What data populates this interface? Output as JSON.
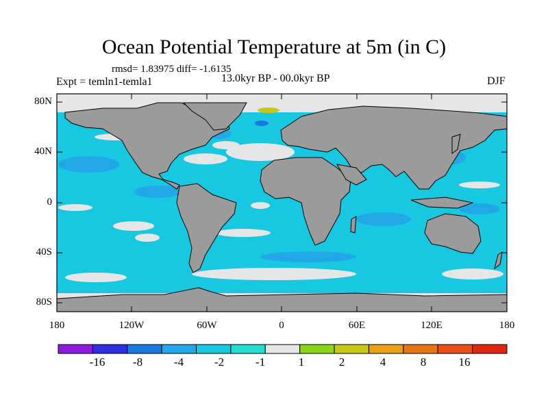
{
  "title": "Ocean Potential Temperature at 5m (in C)",
  "stats": "rmsd= 1.83975 diff= -1.6135",
  "experiment": "Expt = temln1-temla1",
  "period": "13.0kyr BP - 00.0kyr BP",
  "season": "DJF",
  "axes": {
    "y_ticks": [
      "80N",
      "40N",
      "0",
      "40S",
      "80S"
    ],
    "x_ticks": [
      "180",
      "120W",
      "60W",
      "0",
      "60E",
      "120E",
      "180"
    ]
  },
  "colorbar": {
    "colors": [
      "#8c1cdc",
      "#2f2ee0",
      "#1c78dc",
      "#22a8e6",
      "#18c8e0",
      "#24dcd0",
      "#e6e6e6",
      "#8ad618",
      "#c8c814",
      "#e6a014",
      "#e67614",
      "#e6501c",
      "#dc2810"
    ],
    "labels": [
      "-16",
      "-8",
      "-4",
      "-2",
      "-1",
      "1",
      "2",
      "4",
      "8",
      "16"
    ]
  },
  "map_colors": {
    "ocean": "#18c8e0",
    "land": "#9b9b9b",
    "light": "#e6e6e6",
    "mid_blue": "#1c78dc",
    "yellow": "#c8c814",
    "border": "#000000"
  }
}
